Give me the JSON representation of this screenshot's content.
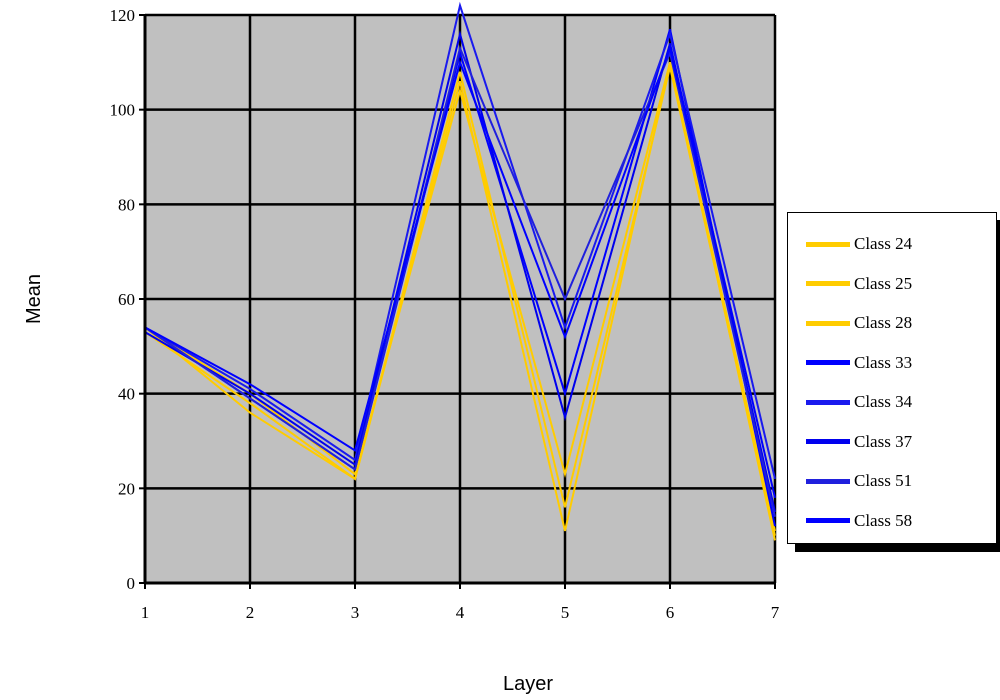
{
  "chart_data": {
    "type": "line",
    "xlabel": "Layer",
    "ylabel": "Mean",
    "x": [
      1,
      2,
      3,
      4,
      5,
      6,
      7
    ],
    "ylim": [
      0,
      120
    ],
    "xlim": [
      1,
      7
    ],
    "yticks": [
      "0",
      "20",
      "40",
      "60",
      "80",
      "100",
      "120"
    ],
    "xticks": [
      "1",
      "2",
      "3",
      "4",
      "5",
      "6",
      "7"
    ],
    "grid": true,
    "plot_background": "#c0c0c0",
    "legend_position": "right",
    "series": [
      {
        "name": "Class 24",
        "color": "#ffcc00",
        "values": [
          54,
          36,
          22,
          106,
          11,
          110,
          9
        ]
      },
      {
        "name": "Class 25",
        "color": "#ffcc00",
        "values": [
          53,
          38,
          22,
          108,
          16,
          109,
          10
        ]
      },
      {
        "name": "Class 28",
        "color": "#ffcc00",
        "values": [
          54,
          40,
          23,
          104,
          23,
          110,
          11
        ]
      },
      {
        "name": "Class 33",
        "color": "#0000ff",
        "values": [
          54,
          39,
          24,
          112,
          40,
          117,
          12
        ]
      },
      {
        "name": "Class 34",
        "color": "#1a1aee",
        "values": [
          54,
          41,
          26,
          122,
          54,
          116,
          22
        ]
      },
      {
        "name": "Class 37",
        "color": "#0000ee",
        "values": [
          53,
          40,
          25,
          116,
          35,
          114,
          15
        ]
      },
      {
        "name": "Class 51",
        "color": "#2020dd",
        "values": [
          54,
          39,
          24,
          113,
          60,
          112,
          14
        ]
      },
      {
        "name": "Class 58",
        "color": "#0000ff",
        "values": [
          54,
          42,
          28,
          110,
          52,
          113,
          18
        ]
      }
    ]
  }
}
